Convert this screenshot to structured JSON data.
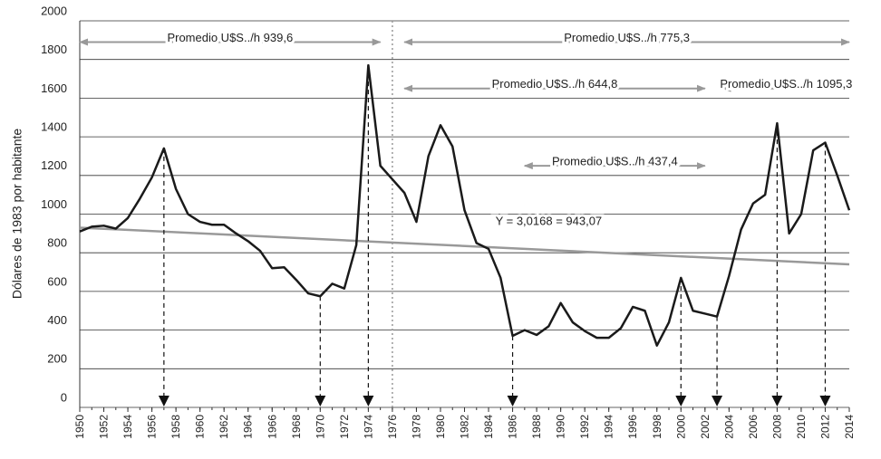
{
  "chart_data": {
    "type": "line",
    "ylabel": "Dólares de 1983 por habitante",
    "x": [
      1950,
      1951,
      1952,
      1953,
      1954,
      1955,
      1956,
      1957,
      1958,
      1959,
      1960,
      1961,
      1962,
      1963,
      1964,
      1965,
      1966,
      1967,
      1968,
      1969,
      1970,
      1971,
      1972,
      1973,
      1974,
      1975,
      1976,
      1977,
      1978,
      1979,
      1980,
      1981,
      1982,
      1983,
      1984,
      1985,
      1986,
      1987,
      1988,
      1989,
      1990,
      1991,
      1992,
      1993,
      1994,
      1995,
      1996,
      1997,
      1998,
      1999,
      2000,
      2001,
      2002,
      2003,
      2004,
      2005,
      2006,
      2007,
      2008,
      2009,
      2010,
      2011,
      2012,
      2013,
      2014
    ],
    "series": [
      {
        "color": "#1a1a1a",
        "values": [
          910,
          935,
          940,
          925,
          980,
          1080,
          1190,
          1340,
          1130,
          1000,
          960,
          945,
          945,
          900,
          860,
          810,
          720,
          725,
          660,
          590,
          575,
          640,
          615,
          840,
          1770,
          1250,
          1180,
          1110,
          960,
          1300,
          1460,
          1350,
          1020,
          850,
          820,
          670,
          370,
          400,
          375,
          420,
          540,
          440,
          395,
          360,
          360,
          410,
          520,
          500,
          320,
          440,
          670,
          500,
          485,
          470,
          680,
          920,
          1055,
          1100,
          1470,
          900,
          1000,
          1330,
          1370,
          1200,
          1020
        ]
      }
    ],
    "trend_line": {
      "x": [
        1950,
        2014
      ],
      "values": [
        930,
        740
      ],
      "color": "#999999",
      "label": "Y = 3,0168 = 943,07",
      "label_x": 1989,
      "label_y": 960
    },
    "averages": [
      {
        "label": "Promedio U$S../h 939,6",
        "x": [
          1950,
          1975
        ],
        "y": 1890
      },
      {
        "label": "Promedio U$S../h 775,3",
        "x": [
          1977,
          2014
        ],
        "y": 1890
      },
      {
        "label": "Promedio U$S../h 644,8",
        "x": [
          1977,
          2002
        ],
        "y": 1650
      },
      {
        "label": "Promedio U$S../h 1095,3",
        "x": [
          2003.5,
          2014
        ],
        "y": 1650
      },
      {
        "label": "Promedio U$S../h 437,4",
        "x": [
          1987,
          2002
        ],
        "y": 1250
      }
    ],
    "markers_x": [
      1957,
      1970,
      1974,
      1986,
      2000,
      2003,
      2008,
      2012
    ],
    "divider_x": 1976,
    "xlim": [
      1950,
      2014
    ],
    "xticks": [
      1950,
      1952,
      1954,
      1956,
      1958,
      1960,
      1962,
      1964,
      1966,
      1968,
      1970,
      1972,
      1974,
      1976,
      1978,
      1980,
      1982,
      1984,
      1986,
      1988,
      1990,
      1992,
      1994,
      1996,
      1998,
      2000,
      2002,
      2004,
      2006,
      2008,
      2010,
      2012,
      2014
    ],
    "ylim": [
      0,
      2000
    ],
    "yticks": [
      0,
      200,
      400,
      600,
      800,
      1000,
      1200,
      1400,
      1600,
      1800,
      2000
    ],
    "grid": true
  }
}
